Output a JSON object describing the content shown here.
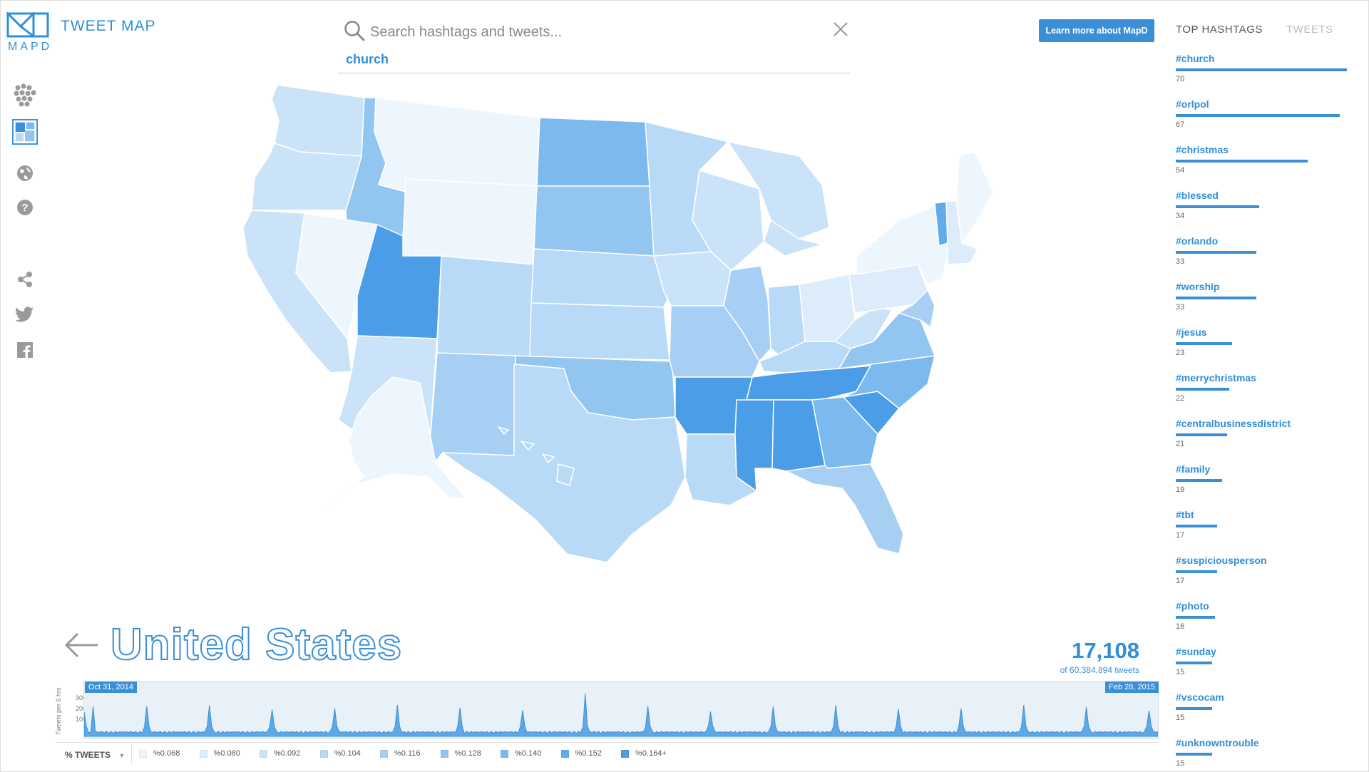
{
  "brand": {
    "logo_text": "MAPD",
    "app_title": "TWEET MAP"
  },
  "nav": [
    {
      "name": "cluster-view-icon",
      "active": false
    },
    {
      "name": "choropleth-view-icon",
      "active": true
    },
    {
      "name": "globe-view-icon",
      "active": false
    },
    {
      "name": "help-icon",
      "active": false
    },
    {
      "name": "share-icon",
      "active": false
    },
    {
      "name": "twitter-icon",
      "active": false
    },
    {
      "name": "facebook-icon",
      "active": false
    }
  ],
  "search": {
    "placeholder": "Search hashtags and tweets...",
    "value": "",
    "term": "church"
  },
  "learn_more_label": "Learn more about MapD",
  "right_panel": {
    "tabs": [
      "TOP HASHTAGS",
      "TWEETS"
    ],
    "active_tab": "TOP HASHTAGS",
    "hashtags": [
      {
        "tag": "#church",
        "count": "70",
        "value": 70
      },
      {
        "tag": "#orlpol",
        "count": "67",
        "value": 67
      },
      {
        "tag": "#christmas",
        "count": "54",
        "value": 54
      },
      {
        "tag": "#blessed",
        "count": "34",
        "value": 34
      },
      {
        "tag": "#orlando",
        "count": "33",
        "value": 33
      },
      {
        "tag": "#worship",
        "count": "33",
        "value": 33
      },
      {
        "tag": "#jesus",
        "count": "23",
        "value": 23
      },
      {
        "tag": "#merrychristmas",
        "count": "22",
        "value": 22
      },
      {
        "tag": "#centralbusinessdistrict",
        "count": "21",
        "value": 21
      },
      {
        "tag": "#family",
        "count": "19",
        "value": 19
      },
      {
        "tag": "#tbt",
        "count": "17",
        "value": 17
      },
      {
        "tag": "#suspiciousperson",
        "count": "17",
        "value": 17
      },
      {
        "tag": "#photo",
        "count": "16",
        "value": 16
      },
      {
        "tag": "#sunday",
        "count": "15",
        "value": 15
      },
      {
        "tag": "#vscocam",
        "count": "15",
        "value": 15
      },
      {
        "tag": "#unknowntrouble",
        "count": "15",
        "value": 15
      }
    ]
  },
  "region": {
    "name": "United States",
    "count": "17,108",
    "of_total": "of 60,384,894 tweets"
  },
  "timeline": {
    "ylabel": "Tweets per 6 hrs",
    "yticks": [
      "300",
      "200",
      "100"
    ],
    "start": "Oct 31, 2014",
    "end": "Feb 28, 2015"
  },
  "legend": {
    "metric_label": "% TWEETS",
    "items": [
      {
        "label": "%0.068",
        "color": "#eef6fd"
      },
      {
        "label": "%0.080",
        "color": "#dcecfb"
      },
      {
        "label": "%0.092",
        "color": "#cbe3f8"
      },
      {
        "label": "%0.104",
        "color": "#b9daf6"
      },
      {
        "label": "%0.116",
        "color": "#a6cff3"
      },
      {
        "label": "%0.128",
        "color": "#93c5f1"
      },
      {
        "label": "%0.140",
        "color": "#7bb9ee"
      },
      {
        "label": "%0.152",
        "color": "#61abea"
      },
      {
        "label": "%0.164+",
        "color": "#4a9de6"
      }
    ]
  }
}
